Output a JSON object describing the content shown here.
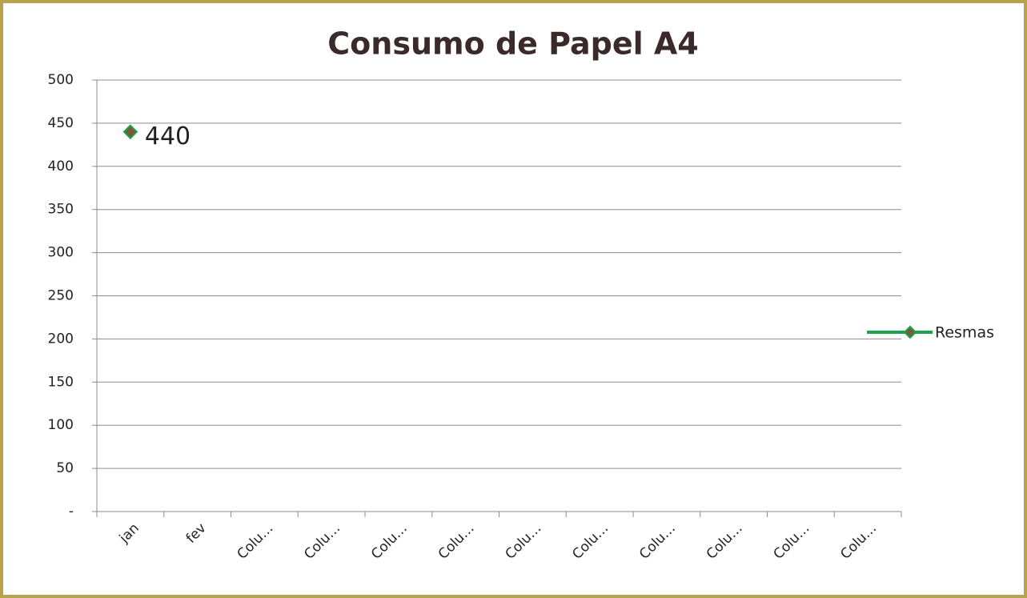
{
  "chart_data": {
    "type": "line",
    "title": "Consumo de Papel A4",
    "categories": [
      "jan",
      "fev",
      "Colu…",
      "Colu…",
      "Colu…",
      "Colu…",
      "Colu…",
      "Colu…",
      "Colu…",
      "Colu…",
      "Colu…",
      "Colu…"
    ],
    "series": [
      {
        "name": "Resmas",
        "color": "#1aa34a",
        "marker_color": "#7a5a3a",
        "values": [
          440,
          null,
          null,
          null,
          null,
          null,
          null,
          null,
          null,
          null,
          null,
          null
        ]
      }
    ],
    "ylim": [
      0,
      500
    ],
    "yticks": [
      {
        "value": 0,
        "label": "-"
      },
      50,
      100,
      150,
      200,
      250,
      300,
      350,
      400,
      450,
      500
    ],
    "grid": true,
    "legend": "right"
  }
}
